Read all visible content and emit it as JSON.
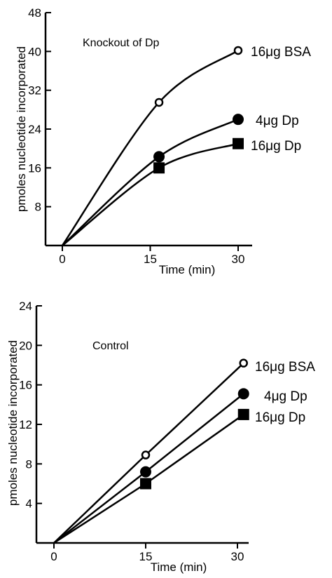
{
  "chart_data": [
    {
      "type": "line",
      "title": "Knockout of Dp",
      "xlabel": "Time (min)",
      "ylabel": "pmoles nucleotide incorporated",
      "xlim": [
        0,
        30
      ],
      "ylim": [
        0,
        48
      ],
      "xticks": [
        "0",
        "15",
        "30"
      ],
      "yticks": [
        "8",
        "16",
        "24",
        "32",
        "40",
        "48"
      ],
      "grid": false,
      "series": [
        {
          "name": "16μg BSA",
          "marker": "open-circle",
          "x": [
            0,
            16.5,
            30
          ],
          "y": [
            0,
            29.5,
            40.2
          ]
        },
        {
          "name": "4μg Dp",
          "marker": "filled-circle",
          "x": [
            0,
            16.5,
            30
          ],
          "y": [
            0,
            18.3,
            26
          ]
        },
        {
          "name": "16μg Dp",
          "marker": "filled-square",
          "x": [
            0,
            16.5,
            30
          ],
          "y": [
            0,
            16,
            21
          ]
        }
      ]
    },
    {
      "type": "line",
      "title": "Control",
      "xlabel": "Time (min)",
      "ylabel": "pmoles nucleotide incorporated",
      "xlim": [
        0,
        30
      ],
      "ylim": [
        0,
        24
      ],
      "xticks": [
        "0",
        "15",
        "30"
      ],
      "yticks": [
        "4",
        "8",
        "12",
        "16",
        "20",
        "24"
      ],
      "grid": false,
      "series": [
        {
          "name": "16μg BSA",
          "marker": "open-circle",
          "x": [
            0,
            15,
            31
          ],
          "y": [
            0,
            8.9,
            18.2
          ]
        },
        {
          "name": "4μg Dp",
          "marker": "filled-circle",
          "x": [
            0,
            15,
            31
          ],
          "y": [
            0,
            7.2,
            15.1
          ]
        },
        {
          "name": "16μg Dp",
          "marker": "filled-square",
          "x": [
            0,
            15,
            31
          ],
          "y": [
            0,
            6,
            13
          ]
        }
      ]
    }
  ]
}
